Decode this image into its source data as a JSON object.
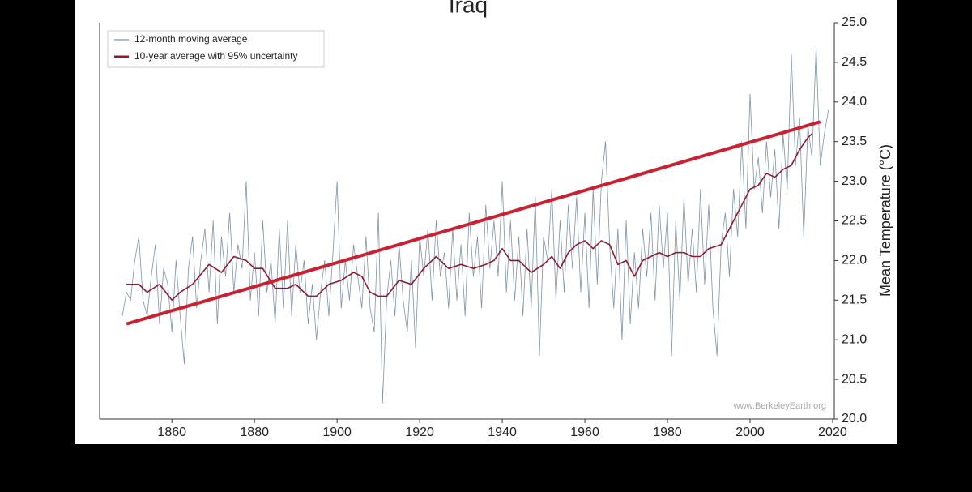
{
  "chart_data": {
    "type": "line",
    "title": "Iraq",
    "y_label": "Mean Temperature (°C)",
    "watermark": "www.BerkeleyEarth.org",
    "xlim": [
      1842.5,
      2020.4
    ],
    "ylim": [
      20.0,
      25.0
    ],
    "xticks": [
      1860,
      1880,
      1900,
      1920,
      1940,
      1960,
      1980,
      2000,
      2020
    ],
    "yticks": [
      {
        "value": 20,
        "label": "20.0"
      },
      20.5,
      {
        "value": 21,
        "label": "21.0"
      },
      21.5,
      {
        "value": 22,
        "label": "22.0"
      },
      22.5,
      {
        "value": 23,
        "label": "23.0"
      },
      23.5,
      {
        "value": 24,
        "label": "24.0"
      },
      24.5,
      {
        "value": 25,
        "label": "25.0"
      }
    ],
    "legend": "upper left",
    "series": [
      {
        "name": "12-month moving average",
        "color": "#7d93a8",
        "width": 0.8,
        "x": [
          1848,
          1849,
          1850,
          1851,
          1852,
          1853,
          1854,
          1855,
          1856,
          1857,
          1858,
          1859,
          1860,
          1861,
          1862,
          1863,
          1864,
          1865,
          1866,
          1867,
          1868,
          1869,
          1870,
          1871,
          1872,
          1873,
          1874,
          1875,
          1876,
          1877,
          1878,
          1879,
          1880,
          1881,
          1882,
          1883,
          1884,
          1885,
          1886,
          1887,
          1888,
          1889,
          1890,
          1891,
          1892,
          1893,
          1894,
          1895,
          1896,
          1897,
          1898,
          1899,
          1900,
          1901,
          1902,
          1903,
          1904,
          1905,
          1906,
          1907,
          1908,
          1909,
          1910,
          1911,
          1912,
          1913,
          1914,
          1915,
          1916,
          1917,
          1918,
          1919,
          1920,
          1921,
          1922,
          1923,
          1924,
          1925,
          1926,
          1927,
          1928,
          1929,
          1930,
          1931,
          1932,
          1933,
          1934,
          1935,
          1936,
          1937,
          1938,
          1939,
          1940,
          1941,
          1942,
          1943,
          1944,
          1945,
          1946,
          1947,
          1948,
          1949,
          1950,
          1951,
          1952,
          1953,
          1954,
          1955,
          1956,
          1957,
          1958,
          1959,
          1960,
          1961,
          1962,
          1963,
          1964,
          1965,
          1966,
          1967,
          1968,
          1969,
          1970,
          1971,
          1972,
          1973,
          1974,
          1975,
          1976,
          1977,
          1978,
          1979,
          1980,
          1981,
          1982,
          1983,
          1984,
          1985,
          1986,
          1987,
          1988,
          1989,
          1990,
          1991,
          1992,
          1993,
          1994,
          1995,
          1996,
          1997,
          1998,
          1999,
          2000,
          2001,
          2002,
          2003,
          2004,
          2005,
          2006,
          2007,
          2008,
          2009,
          2010,
          2011,
          2012,
          2013,
          2014,
          2015,
          2016,
          2017,
          2018,
          2019
        ],
        "values": [
          21.3,
          21.6,
          21.5,
          22.0,
          22.3,
          21.5,
          21.3,
          21.8,
          22.2,
          21.2,
          21.9,
          21.7,
          21.1,
          22.0,
          21.3,
          20.7,
          21.9,
          22.3,
          21.4,
          22.0,
          22.4,
          21.6,
          22.5,
          21.2,
          22.3,
          21.8,
          22.6,
          21.6,
          22.2,
          21.9,
          23.0,
          21.5,
          22.1,
          21.3,
          22.5,
          21.6,
          22.0,
          21.2,
          22.4,
          21.4,
          22.5,
          21.3,
          22.2,
          21.6,
          22.0,
          21.2,
          21.7,
          21.0,
          21.6,
          22.0,
          21.3,
          22.1,
          23.0,
          21.4,
          22.0,
          21.5,
          22.2,
          21.8,
          21.4,
          22.3,
          21.4,
          21.1,
          22.6,
          20.2,
          21.5,
          22.0,
          21.3,
          22.2,
          21.5,
          21.1,
          22.0,
          20.9,
          22.3,
          21.8,
          22.4,
          21.5,
          22.5,
          21.8,
          22.1,
          21.4,
          22.4,
          21.5,
          22.2,
          21.3,
          22.6,
          21.8,
          22.3,
          21.4,
          22.7,
          21.9,
          22.5,
          21.8,
          23.0,
          21.6,
          22.5,
          21.5,
          22.3,
          21.3,
          22.4,
          21.4,
          22.8,
          20.8,
          22.3,
          22.0,
          22.9,
          21.5,
          22.5,
          21.6,
          22.7,
          21.9,
          22.8,
          21.6,
          22.6,
          21.4,
          22.9,
          21.7,
          23.0,
          23.5,
          22.2,
          21.4,
          22.4,
          21.0,
          22.5,
          21.2,
          22.1,
          21.4,
          22.4,
          21.8,
          22.6,
          21.5,
          22.7,
          21.9,
          22.6,
          20.8,
          22.5,
          21.5,
          22.8,
          21.7,
          22.4,
          21.6,
          22.9,
          21.7,
          22.7,
          21.4,
          20.8,
          22.2,
          22.6,
          21.8,
          22.9,
          22.3,
          23.5,
          22.4,
          24.1,
          22.9,
          23.3,
          22.6,
          23.5,
          22.8,
          23.4,
          22.4,
          23.6,
          22.9,
          24.6,
          23.2,
          23.8,
          22.3,
          23.7,
          23.3,
          24.7,
          23.2,
          23.6,
          23.9
        ]
      },
      {
        "name": "10-year average with 95% uncertainty",
        "color": "#8b1a2e",
        "width": 1.6,
        "x": [
          1849,
          1852,
          1854,
          1857,
          1860,
          1862,
          1865,
          1869,
          1872,
          1875,
          1878,
          1880,
          1882,
          1885,
          1888,
          1890,
          1893,
          1895,
          1898,
          1901,
          1904,
          1906,
          1908,
          1910,
          1912,
          1915,
          1918,
          1921,
          1924,
          1927,
          1930,
          1933,
          1936,
          1938,
          1940,
          1942,
          1944,
          1947,
          1950,
          1952,
          1954,
          1956,
          1958,
          1960,
          1962,
          1964,
          1966,
          1968,
          1970,
          1972,
          1974,
          1976,
          1978,
          1980,
          1982,
          1984,
          1986,
          1988,
          1990,
          1993,
          1996,
          1998,
          2000,
          2002,
          2004,
          2006,
          2008,
          2010,
          2012,
          2014,
          2015
        ],
        "values": [
          21.7,
          21.7,
          21.6,
          21.7,
          21.5,
          21.6,
          21.7,
          21.95,
          21.85,
          22.05,
          22.0,
          21.9,
          21.9,
          21.65,
          21.65,
          21.7,
          21.55,
          21.55,
          21.7,
          21.75,
          21.85,
          21.8,
          21.6,
          21.55,
          21.55,
          21.75,
          21.7,
          21.9,
          22.05,
          21.9,
          21.95,
          21.9,
          21.95,
          22.0,
          22.15,
          22.0,
          22.0,
          21.85,
          21.95,
          22.05,
          21.9,
          22.1,
          22.2,
          22.25,
          22.15,
          22.25,
          22.2,
          21.95,
          22.0,
          21.8,
          22.0,
          22.05,
          22.1,
          22.05,
          22.1,
          22.1,
          22.05,
          22.05,
          22.15,
          22.2,
          22.5,
          22.7,
          22.9,
          22.95,
          23.1,
          23.05,
          23.15,
          23.2,
          23.4,
          23.55,
          23.6
        ]
      },
      {
        "color": "#cc1f2f",
        "width": 4,
        "x": [
          1849,
          2017
        ],
        "values": [
          21.2,
          23.75
        ]
      }
    ]
  }
}
